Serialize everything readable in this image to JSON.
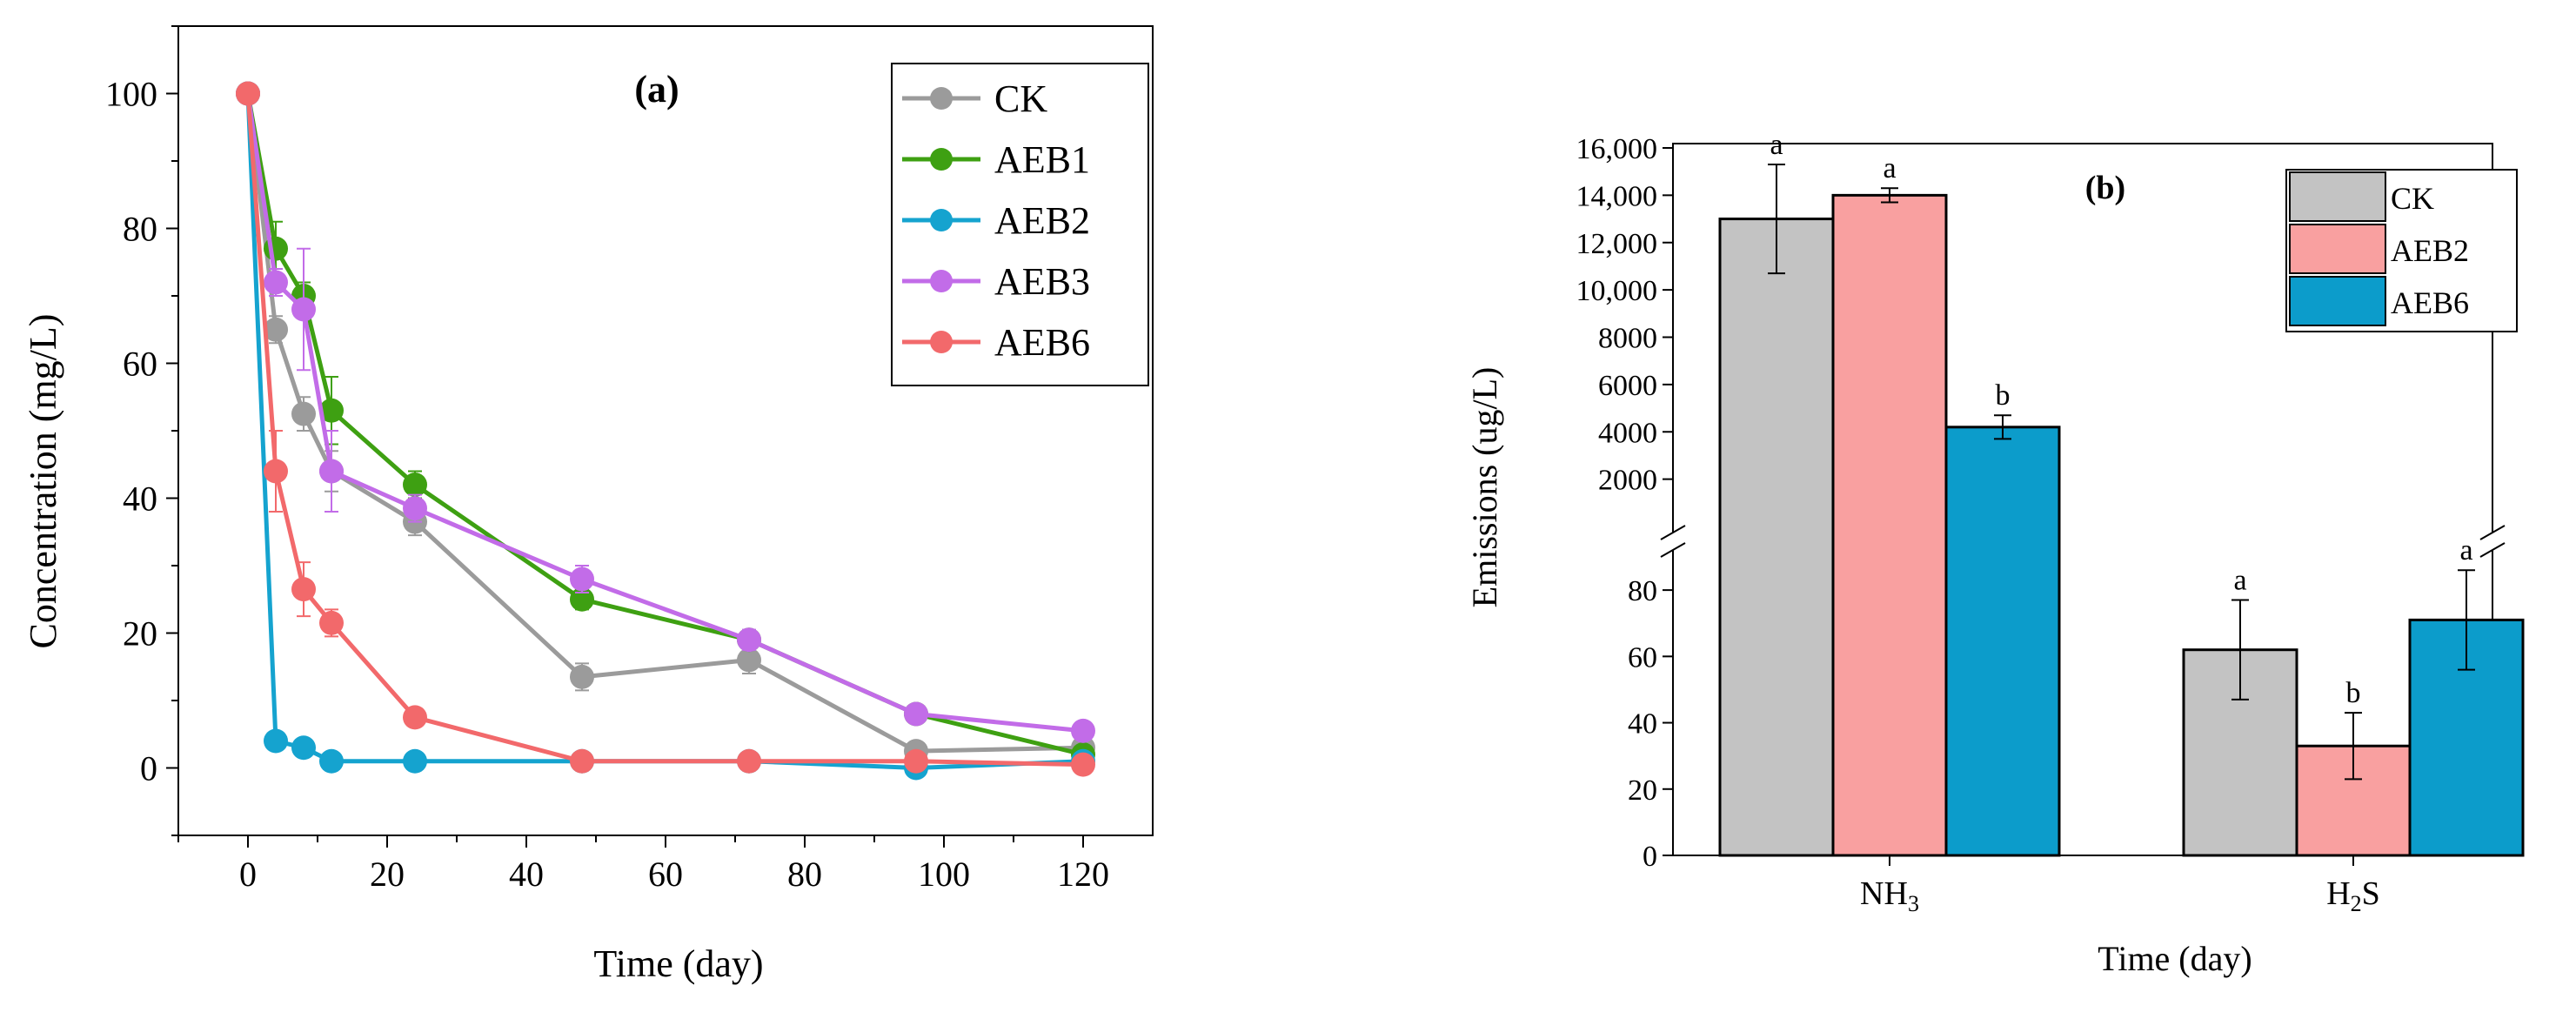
{
  "chart_data": [
    {
      "type": "line",
      "panel_label": "(a)",
      "xlabel": "Time (day)",
      "ylabel": "Concentration (mg/L)",
      "xlim": [
        -10,
        130
      ],
      "ylim": [
        -10,
        110
      ],
      "xticks": [
        0,
        20,
        40,
        60,
        80,
        100,
        120
      ],
      "yticks": [
        0,
        20,
        40,
        60,
        80,
        100
      ],
      "legend_position": "top-right",
      "series": [
        {
          "name": "CK",
          "color": "#9b9b9b",
          "x": [
            0,
            4,
            8,
            12,
            24,
            48,
            72,
            96,
            120
          ],
          "y": [
            100,
            65,
            52.5,
            44,
            36.5,
            13.5,
            16,
            2.5,
            3
          ],
          "err": [
            0,
            2,
            2.5,
            3,
            2,
            2,
            2,
            1,
            1
          ]
        },
        {
          "name": "AEB1",
          "color": "#3ea012",
          "x": [
            0,
            4,
            8,
            12,
            24,
            48,
            72,
            96,
            120
          ],
          "y": [
            100,
            77,
            70,
            53,
            42,
            25,
            19,
            8,
            2
          ],
          "err": [
            0,
            4,
            2,
            5,
            2,
            1.5,
            1,
            1,
            0.5
          ]
        },
        {
          "name": "AEB2",
          "color": "#15a3cf",
          "x": [
            0,
            4,
            8,
            12,
            24,
            48,
            72,
            96,
            120
          ],
          "y": [
            100,
            4,
            3,
            1,
            1,
            1,
            1,
            0,
            1
          ],
          "err": [
            0,
            0.5,
            0.5,
            0.3,
            0.3,
            0.3,
            0.3,
            0.3,
            0.3
          ]
        },
        {
          "name": "AEB3",
          "color": "#c26ce8",
          "x": [
            0,
            4,
            8,
            12,
            24,
            48,
            72,
            96,
            120
          ],
          "y": [
            100,
            72,
            68,
            44,
            38.5,
            28,
            19,
            8,
            5.5
          ],
          "err": [
            0,
            2,
            9,
            6,
            2,
            2,
            1.5,
            1,
            1
          ]
        },
        {
          "name": "AEB6",
          "color": "#f2696b",
          "x": [
            0,
            4,
            8,
            12,
            24,
            48,
            72,
            96,
            120
          ],
          "y": [
            100,
            44,
            26.5,
            21.5,
            7.5,
            1,
            1,
            1,
            0.5
          ],
          "err": [
            0,
            6,
            4,
            2,
            1,
            0.5,
            0.5,
            0.5,
            0.3
          ]
        }
      ]
    },
    {
      "type": "bar",
      "panel_label": "(b)",
      "xlabel": "Time (day)",
      "ylabel": "Emissions (ug/L)",
      "categories": [
        "NH3",
        "H2S"
      ],
      "category_main": [
        "NH",
        "H"
      ],
      "category_sub": [
        "3",
        "2"
      ],
      "category_tail": [
        "",
        "S"
      ],
      "axis_break": true,
      "upper_ylim": [
        0,
        16000
      ],
      "upper_yticks": [
        2000,
        4000,
        6000,
        8000,
        10000,
        12000,
        14000,
        16000
      ],
      "upper_ytick_labels": [
        "2000",
        "4000",
        "6000",
        "8000",
        "10,000",
        "12,000",
        "14,000",
        "16,000"
      ],
      "lower_ylim": [
        0,
        90
      ],
      "lower_yticks": [
        0,
        20,
        40,
        60,
        80
      ],
      "legend_position": "top-right",
      "series": [
        {
          "name": "CK",
          "color": "#c3c3c3",
          "values": [
            13000,
            62
          ],
          "err": [
            2300,
            15
          ],
          "letters": [
            "a",
            "a"
          ]
        },
        {
          "name": "AEB2",
          "color": "#f9a0a0",
          "values": [
            14000,
            33
          ],
          "err": [
            300,
            10
          ],
          "letters": [
            "a",
            "b"
          ]
        },
        {
          "name": "AEB6",
          "color": "#0c9ccb",
          "values": [
            4200,
            71
          ],
          "err": [
            500,
            15
          ],
          "letters": [
            "b",
            "a"
          ]
        }
      ]
    }
  ]
}
